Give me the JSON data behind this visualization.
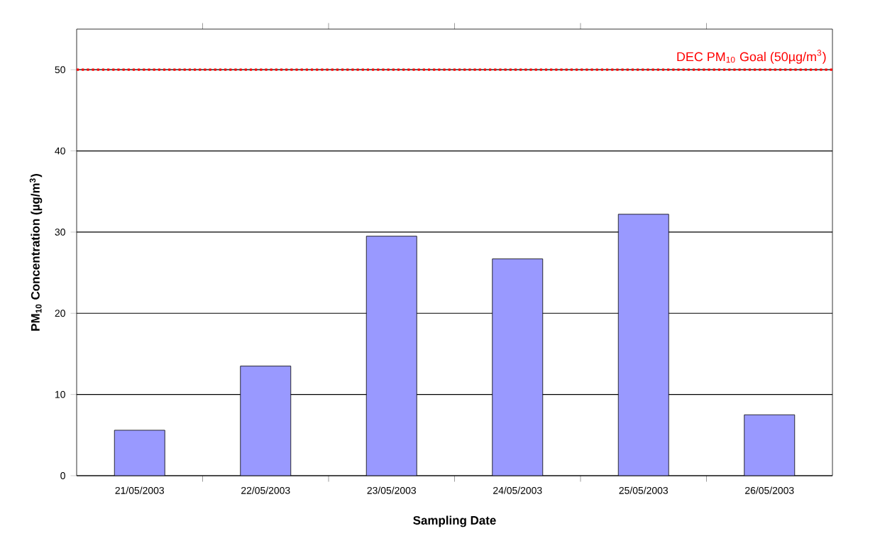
{
  "chart_data": {
    "type": "bar",
    "xlabel": "Sampling Date",
    "ylabel": "PM$_{10}$ Concentration (µg/m$^{3}$)",
    "categories": [
      "21/05/2003",
      "22/05/2003",
      "23/05/2003",
      "24/05/2003",
      "25/05/2003",
      "26/05/2003"
    ],
    "values": [
      5.6,
      13.5,
      29.5,
      26.7,
      32.2,
      7.5
    ],
    "color": "#9999ff",
    "ylim": [
      0,
      55
    ],
    "yticks": [
      0,
      10,
      20,
      30,
      40,
      50
    ],
    "grid": "y",
    "ref_lines": [
      {
        "axis": "y",
        "value": 50,
        "label": "DEC PM$_{10}$ Goal (50µg/m$^{3}$)",
        "color": "#ff0000",
        "line_style": "dotted"
      }
    ]
  }
}
